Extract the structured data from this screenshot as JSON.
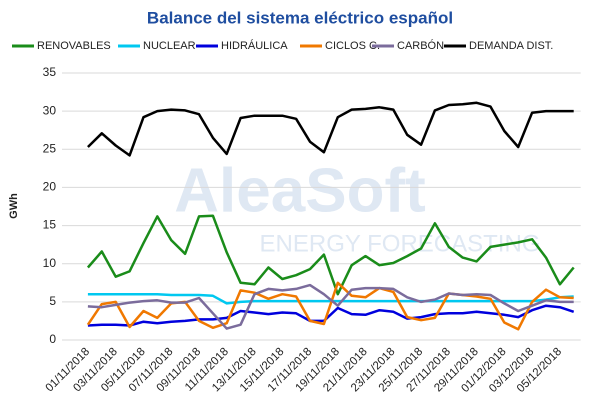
{
  "chart_data": {
    "type": "line",
    "title": "Balance del sistema eléctrico español",
    "ylabel": "GWh",
    "watermark": [
      "AleaSoft",
      "ENERGY FORECASTING"
    ],
    "categories": [
      "01/11/2018",
      null,
      "03/11/2018",
      null,
      "05/11/2018",
      null,
      "07/11/2018",
      null,
      "09/11/2018",
      null,
      "11/11/2018",
      null,
      "13/11/2018",
      null,
      "15/11/2018",
      null,
      "17/11/2018",
      null,
      "19/11/2018",
      null,
      "21/11/2018",
      null,
      "23/11/2018",
      null,
      "25/11/2018",
      null,
      "27/11/2018",
      null,
      "29/11/2018",
      null,
      "01/12/2018",
      null,
      "03/12/2018",
      null,
      "05/12/2018",
      null
    ],
    "ylim": [
      0,
      35
    ],
    "yticks": [
      0,
      5,
      10,
      15,
      20,
      25,
      30,
      35
    ],
    "grid": true,
    "series": [
      {
        "name": "RENOVABLES",
        "color": "#1a8c1a",
        "values": [
          9.5,
          11.6,
          8.3,
          9.0,
          12.7,
          16.2,
          13.1,
          11.3,
          16.2,
          16.3,
          11.5,
          7.5,
          7.3,
          9.5,
          8.0,
          8.5,
          9.3,
          11.2,
          6.0,
          9.8,
          11.0,
          9.8,
          10.1,
          11.0,
          12.0,
          15.3,
          12.2,
          10.8,
          10.3,
          12.2,
          12.5,
          12.8,
          13.2,
          10.8,
          7.3,
          9.5
        ]
      },
      {
        "name": "NUCLEAR",
        "color": "#00c8f0",
        "values": [
          6.0,
          6.0,
          6.0,
          6.0,
          6.0,
          6.0,
          5.9,
          5.9,
          5.9,
          5.8,
          4.8,
          5.0,
          5.1,
          5.1,
          5.1,
          5.1,
          5.1,
          5.1,
          5.1,
          5.1,
          5.1,
          5.1,
          5.1,
          5.1,
          5.1,
          5.1,
          5.1,
          5.1,
          5.1,
          5.1,
          5.1,
          5.1,
          5.1,
          5.3,
          5.6,
          5.7
        ]
      },
      {
        "name": "HIDRÁULICA",
        "color": "#0000dd",
        "values": [
          1.9,
          2.0,
          2.0,
          1.9,
          2.4,
          2.2,
          2.4,
          2.5,
          2.7,
          2.7,
          2.9,
          3.8,
          3.6,
          3.4,
          3.6,
          3.5,
          2.5,
          2.5,
          4.2,
          3.4,
          3.3,
          3.9,
          3.7,
          2.8,
          3.0,
          3.4,
          3.5,
          3.5,
          3.7,
          3.5,
          3.3,
          3.0,
          3.9,
          4.5,
          4.3,
          3.7
        ]
      },
      {
        "name": "CICLOS C.",
        "color": "#f07800",
        "values": [
          2.0,
          4.7,
          5.0,
          1.7,
          3.8,
          2.9,
          4.8,
          5.0,
          2.5,
          1.6,
          2.2,
          6.5,
          6.2,
          5.4,
          6.0,
          5.7,
          2.5,
          2.1,
          7.5,
          5.8,
          5.6,
          6.8,
          6.3,
          3.0,
          2.6,
          2.9,
          6.1,
          5.9,
          5.7,
          5.4,
          2.3,
          1.4,
          5.0,
          6.6,
          5.6,
          5.5
        ]
      },
      {
        "name": "CARBÓN",
        "color": "#7b6c9c",
        "values": [
          4.4,
          4.3,
          4.6,
          4.9,
          5.1,
          5.2,
          4.9,
          4.9,
          5.5,
          3.5,
          1.5,
          2.0,
          6.0,
          6.7,
          6.5,
          6.7,
          7.2,
          6.0,
          4.5,
          6.6,
          6.8,
          6.8,
          6.7,
          5.6,
          5.0,
          5.3,
          6.1,
          5.9,
          6.0,
          5.9,
          4.8,
          3.8,
          4.5,
          5.2,
          5.0,
          5.0
        ]
      },
      {
        "name": "DEMANDA DIST.",
        "color": "#000000",
        "values": [
          25.3,
          27.1,
          25.5,
          24.2,
          29.2,
          30.0,
          30.2,
          30.1,
          29.6,
          26.5,
          24.4,
          29.1,
          29.4,
          29.4,
          29.4,
          29.0,
          26.0,
          24.6,
          29.2,
          30.2,
          30.3,
          30.5,
          30.2,
          26.9,
          25.6,
          30.1,
          30.8,
          30.9,
          31.1,
          30.6,
          27.4,
          25.3,
          29.8,
          30.0,
          30.0,
          30.0
        ]
      }
    ]
  }
}
